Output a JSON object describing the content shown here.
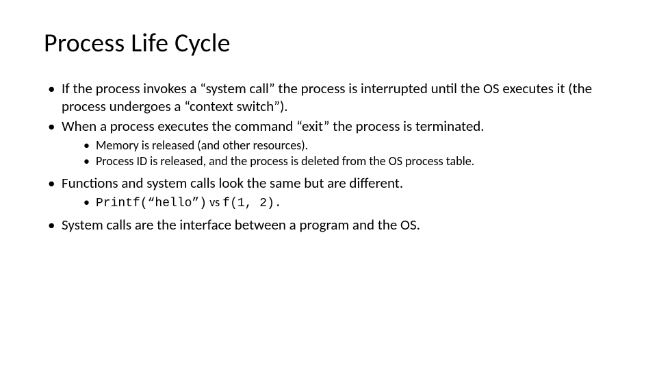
{
  "title": "Process Life Cycle",
  "bullets": [
    {
      "text": "If the process invokes a “system call” the process is interrupted until the OS executes it (the process undergoes a “context switch”).",
      "sub": []
    },
    {
      "text": "When a process executes the command “exit” the process is terminated.",
      "sub": [
        {
          "text": "Memory is released (and other resources)."
        },
        {
          "text": "Process ID is released, and the process is deleted from the OS process table."
        }
      ]
    },
    {
      "text": "Functions and system calls look the same but are different.",
      "sub": [
        {
          "code_a": "Printf(“hello”)",
          "mid": " vs ",
          "code_b": "f(1, 2)."
        }
      ]
    },
    {
      "text": "System calls are the interface between a program and the OS.",
      "sub": []
    }
  ],
  "style": {
    "background": "#ffffff",
    "text_color": "#000000",
    "title_fontsize": 38,
    "bullet_fontsize": 21,
    "sub_fontsize": 18,
    "code_font": "Courier New"
  }
}
